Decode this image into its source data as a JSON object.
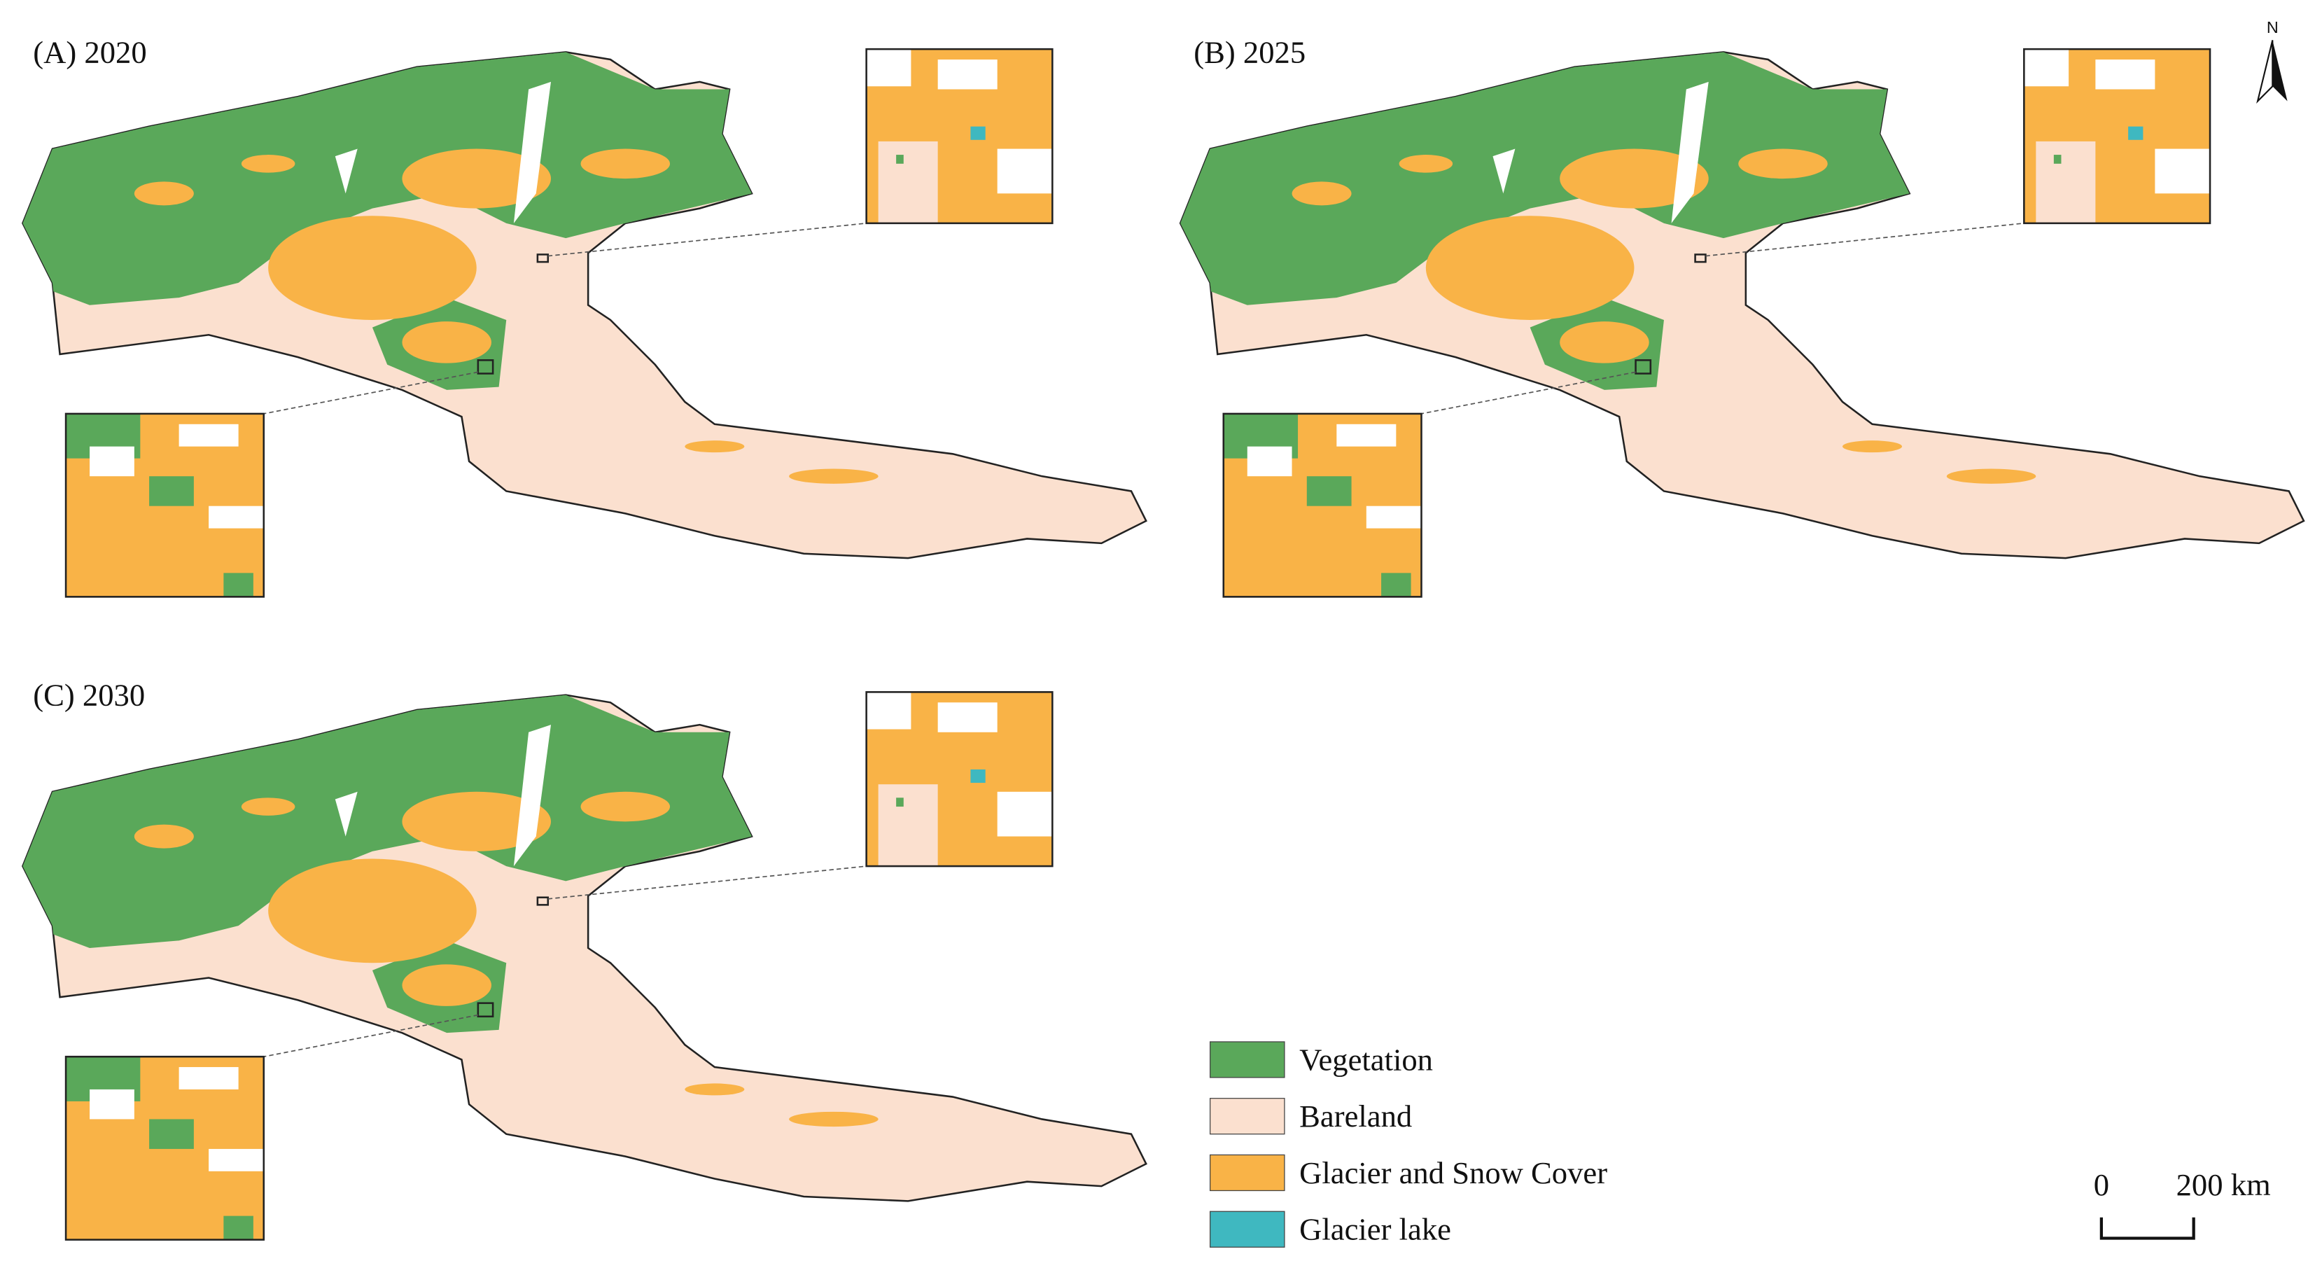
{
  "panels": [
    {
      "label": "(A) 2020"
    },
    {
      "label": "(B) 2025"
    },
    {
      "label": "(C) 2030"
    }
  ],
  "legend": [
    {
      "label": "Vegetation",
      "color": "#5aa85a"
    },
    {
      "label": "Bareland",
      "color": "#fbe0cf"
    },
    {
      "label": "Glacier and Snow Cover",
      "color": "#f9b347"
    },
    {
      "label": "Glacier lake",
      "color": "#3fb8c0"
    }
  ],
  "scale_bar": {
    "start": "0",
    "end": "200 km"
  },
  "north_label": "N"
}
